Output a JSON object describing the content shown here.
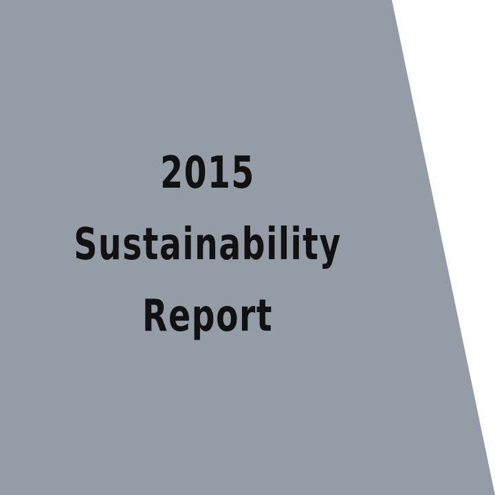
{
  "cover": {
    "title_lines": [
      "2015",
      "Sustainability",
      "Report"
    ],
    "colors": {
      "panel": "#949da5",
      "background": "#ffffff",
      "text": "#111111"
    }
  }
}
